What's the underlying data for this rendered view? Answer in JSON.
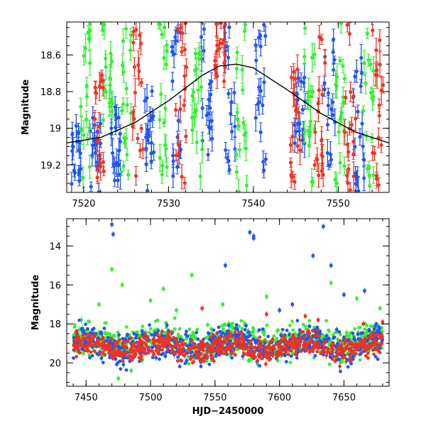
{
  "chart_data": [
    {
      "type": "scatter",
      "panel": "top",
      "title": "",
      "xlabel": "",
      "ylabel": "Magnitude",
      "xlim": [
        7518,
        7556
      ],
      "ylim": [
        19.35,
        18.42
      ],
      "y_inverted": true,
      "grid": false,
      "legend": "none",
      "x_ticks": [
        7520,
        7530,
        7540,
        7550
      ],
      "x_tick_labels": [
        "7520",
        "7530",
        "7540",
        "7550"
      ],
      "y_ticks": [
        18.6,
        18.8,
        19,
        19.2
      ],
      "y_tick_labels": [
        "18.6",
        "18.8",
        "19",
        "19.2"
      ],
      "model_curve": {
        "color": "#000000",
        "x": [
          7518,
          7522,
          7526,
          7530,
          7534,
          7536,
          7538,
          7540,
          7544,
          7548,
          7552,
          7556
        ],
        "y": [
          19.08,
          19.05,
          18.97,
          18.85,
          18.71,
          18.66,
          18.65,
          18.67,
          18.79,
          18.92,
          19.02,
          19.08
        ]
      },
      "series": [
        {
          "color": "#2255ee",
          "clusters": [
            {
              "x": 7519.0,
              "ymin": 18.95,
              "ymax": 19.35
            },
            {
              "x": 7521.4,
              "ymin": 18.88,
              "ymax": 19.35
            },
            {
              "x": 7523.9,
              "ymin": 18.88,
              "ymax": 19.35
            },
            {
              "x": 7527.7,
              "ymin": 18.78,
              "ymax": 19.35
            },
            {
              "x": 7530.8,
              "ymin": 18.45,
              "ymax": 19.3
            },
            {
              "x": 7534.5,
              "ymin": 18.42,
              "ymax": 19.22
            },
            {
              "x": 7537.2,
              "ymin": 18.42,
              "ymax": 19.3
            },
            {
              "x": 7540.9,
              "ymin": 18.42,
              "ymax": 19.35
            },
            {
              "x": 7545.5,
              "ymin": 18.62,
              "ymax": 19.1
            },
            {
              "x": 7549.0,
              "ymin": 18.5,
              "ymax": 19.3
            },
            {
              "x": 7552.4,
              "ymin": 18.6,
              "ymax": 19.35
            }
          ]
        },
        {
          "color": "#33ee33",
          "clusters": [
            {
              "x": 7520.2,
              "ymin": 18.42,
              "ymax": 19.3
            },
            {
              "x": 7522.8,
              "ymin": 18.42,
              "ymax": 19.0
            },
            {
              "x": 7525.0,
              "ymin": 18.42,
              "ymax": 19.35
            },
            {
              "x": 7529.5,
              "ymin": 18.42,
              "ymax": 19.35
            },
            {
              "x": 7533.4,
              "ymin": 18.42,
              "ymax": 19.3
            },
            {
              "x": 7538.6,
              "ymin": 18.42,
              "ymax": 19.35
            },
            {
              "x": 7546.6,
              "ymin": 18.42,
              "ymax": 19.35
            },
            {
              "x": 7550.2,
              "ymin": 18.42,
              "ymax": 19.35
            },
            {
              "x": 7553.6,
              "ymin": 18.42,
              "ymax": 19.35
            }
          ]
        },
        {
          "color": "#ee3322",
          "clusters": [
            {
              "x": 7521.9,
              "ymin": 18.42,
              "ymax": 19.3
            },
            {
              "x": 7526.4,
              "ymin": 18.42,
              "ymax": 19.35
            },
            {
              "x": 7531.5,
              "ymin": 18.42,
              "ymax": 19.35
            },
            {
              "x": 7536.1,
              "ymin": 18.42,
              "ymax": 18.75
            },
            {
              "x": 7544.9,
              "ymin": 18.62,
              "ymax": 19.3
            },
            {
              "x": 7547.8,
              "ymin": 18.5,
              "ymax": 19.35
            },
            {
              "x": 7551.4,
              "ymin": 18.42,
              "ymax": 19.35
            },
            {
              "x": 7554.7,
              "ymin": 18.45,
              "ymax": 19.35
            }
          ]
        }
      ]
    },
    {
      "type": "scatter",
      "panel": "bottom",
      "title": "",
      "xlabel": "HJD−2450000",
      "ylabel": "Magnitude",
      "xlim": [
        7435,
        7685
      ],
      "ylim": [
        21.2,
        12.6
      ],
      "y_inverted": true,
      "grid": false,
      "legend": "none",
      "x_ticks": [
        7450,
        7500,
        7550,
        7600,
        7650
      ],
      "x_tick_labels": [
        "7450",
        "7500",
        "7550",
        "7600",
        "7650"
      ],
      "y_ticks": [
        14,
        16,
        18,
        20
      ],
      "y_tick_labels": [
        "14",
        "16",
        "18",
        "20"
      ],
      "series": [
        {
          "color": "#33ee33",
          "band_center": 18.9,
          "band_width": 0.9,
          "outliers": [
            [
              7470,
              15.2
            ],
            [
              7532,
              15.5
            ],
            [
              7478,
              16.0
            ],
            [
              7460,
              17.0
            ],
            [
              7500,
              16.8
            ],
            [
              7510,
              16.2
            ],
            [
              7520,
              17.3
            ],
            [
              7556,
              17.0
            ],
            [
              7590,
              16.6
            ],
            [
              7640,
              15.9
            ],
            [
              7660,
              16.7
            ],
            [
              7678,
              17.2
            ],
            [
              7475,
              20.8
            ],
            [
              7485,
              20.4
            ]
          ]
        },
        {
          "color": "#2255ee",
          "band_center": 19.1,
          "band_width": 0.8,
          "outliers": [
            [
              7470,
              12.9
            ],
            [
              7471,
              13.4
            ],
            [
              7577,
              13.3
            ],
            [
              7580,
              13.6
            ],
            [
              7580,
              13.5
            ],
            [
              7634,
              13.0
            ],
            [
              7626,
              14.5
            ],
            [
              7558,
              15.0
            ],
            [
              7640,
              15.0
            ],
            [
              7650,
              16.5
            ],
            [
              7666,
              16.3
            ],
            [
              7600,
              17.3
            ],
            [
              7610,
              17.0
            ]
          ]
        },
        {
          "color": "#ee3322",
          "band_center": 19.2,
          "band_width": 0.6,
          "outliers": [
            [
              7540,
              17.2
            ],
            [
              7590,
              17.5
            ],
            [
              7620,
              17.6
            ],
            [
              7630,
              17.8
            ],
            [
              7665,
              18.0
            ],
            [
              7680,
              17.9
            ]
          ]
        }
      ]
    }
  ]
}
